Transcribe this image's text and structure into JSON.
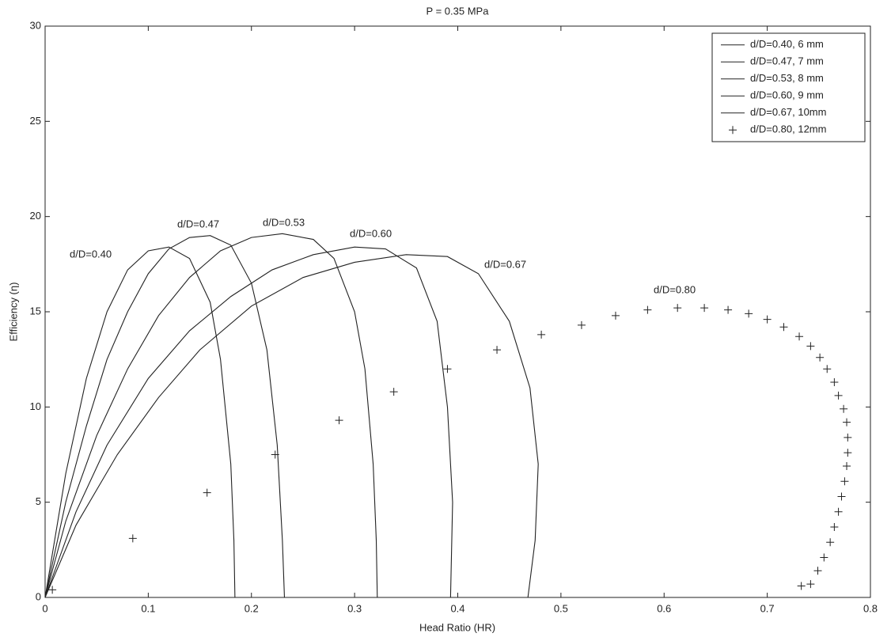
{
  "chart_data": {
    "type": "line",
    "title": "P = 0.35 MPa",
    "x_label": "Head Ratio (HR)",
    "y_label": "Efficiency (η)",
    "xlim": [
      0,
      0.8
    ],
    "ylim": [
      0,
      30
    ],
    "xticks": [
      0,
      0.1,
      0.2,
      0.3,
      0.4,
      0.5,
      0.6,
      0.7,
      0.8
    ],
    "yticks": [
      0,
      5,
      10,
      15,
      20,
      25,
      30
    ],
    "grid": false,
    "legend_position": "upper right",
    "series": [
      {
        "name": "d/D=0.40, 6 mm",
        "color": "#222222",
        "marker": "line",
        "x": [
          0,
          0.02,
          0.04,
          0.06,
          0.08,
          0.1,
          0.12,
          0.14,
          0.16,
          0.17,
          0.18,
          0.183,
          0.184
        ],
        "values": [
          0,
          6.5,
          11.5,
          15,
          17.2,
          18.2,
          18.4,
          17.8,
          15.5,
          12.5,
          7,
          3,
          0
        ]
      },
      {
        "name": "d/D=0.47, 7 mm",
        "color": "#222222",
        "marker": "line",
        "x": [
          0,
          0.02,
          0.04,
          0.06,
          0.08,
          0.1,
          0.12,
          0.14,
          0.16,
          0.18,
          0.2,
          0.215,
          0.225,
          0.23,
          0.232
        ],
        "values": [
          0,
          5,
          9,
          12.5,
          15,
          17,
          18.3,
          18.9,
          19,
          18.5,
          16.5,
          13,
          8,
          3,
          0
        ]
      },
      {
        "name": "d/D=0.53, 8 mm",
        "color": "#222222",
        "marker": "line",
        "x": [
          0,
          0.02,
          0.05,
          0.08,
          0.11,
          0.14,
          0.17,
          0.2,
          0.23,
          0.26,
          0.28,
          0.3,
          0.31,
          0.318,
          0.321,
          0.322
        ],
        "values": [
          0,
          4,
          8.5,
          12,
          14.8,
          16.8,
          18.2,
          18.9,
          19.1,
          18.8,
          17.8,
          15,
          12,
          7,
          3,
          0
        ]
      },
      {
        "name": "d/D=0.60, 9 mm",
        "color": "#222222",
        "marker": "line",
        "x": [
          0,
          0.03,
          0.06,
          0.1,
          0.14,
          0.18,
          0.22,
          0.26,
          0.3,
          0.33,
          0.36,
          0.38,
          0.39,
          0.395,
          0.393
        ],
        "values": [
          0,
          4.5,
          8,
          11.5,
          14,
          15.8,
          17.2,
          18,
          18.4,
          18.3,
          17.3,
          14.5,
          10,
          5,
          0
        ]
      },
      {
        "name": "d/D=0.67, 10mm",
        "color": "#222222",
        "marker": "line",
        "x": [
          0,
          0.03,
          0.07,
          0.11,
          0.15,
          0.2,
          0.25,
          0.3,
          0.35,
          0.39,
          0.42,
          0.45,
          0.47,
          0.478,
          0.475,
          0.468
        ],
        "values": [
          0,
          3.8,
          7.5,
          10.5,
          13,
          15.3,
          16.8,
          17.6,
          18,
          17.9,
          17,
          14.5,
          11,
          7,
          3,
          0
        ]
      },
      {
        "name": "d/D=0.80, 12mm",
        "color": "#222222",
        "marker": "+",
        "x": [
          0.007,
          0.085,
          0.157,
          0.223,
          0.285,
          0.338,
          0.39,
          0.438,
          0.481,
          0.52,
          0.553,
          0.584,
          0.613,
          0.639,
          0.662,
          0.682,
          0.7,
          0.716,
          0.731,
          0.742,
          0.751,
          0.758,
          0.765,
          0.769,
          0.774,
          0.777,
          0.778,
          0.778,
          0.777,
          0.775,
          0.772,
          0.769,
          0.765,
          0.761,
          0.755,
          0.749,
          0.742,
          0.733
        ],
        "values": [
          0.4,
          3.1,
          5.5,
          7.5,
          9.3,
          10.8,
          12.0,
          13.0,
          13.8,
          14.3,
          14.8,
          15.1,
          15.2,
          15.2,
          15.1,
          14.9,
          14.6,
          14.2,
          13.7,
          13.2,
          12.6,
          12.0,
          11.3,
          10.6,
          9.9,
          9.2,
          8.4,
          7.6,
          6.9,
          6.1,
          5.3,
          4.5,
          3.7,
          2.9,
          2.1,
          1.4,
          0.7,
          0.6
        ]
      }
    ],
    "annotations": [
      "d/D=0.40",
      "d/D=0.47",
      "d/D=0.53",
      "d/D=0.60",
      "d/D=0.67",
      "d/D=0.80"
    ]
  }
}
